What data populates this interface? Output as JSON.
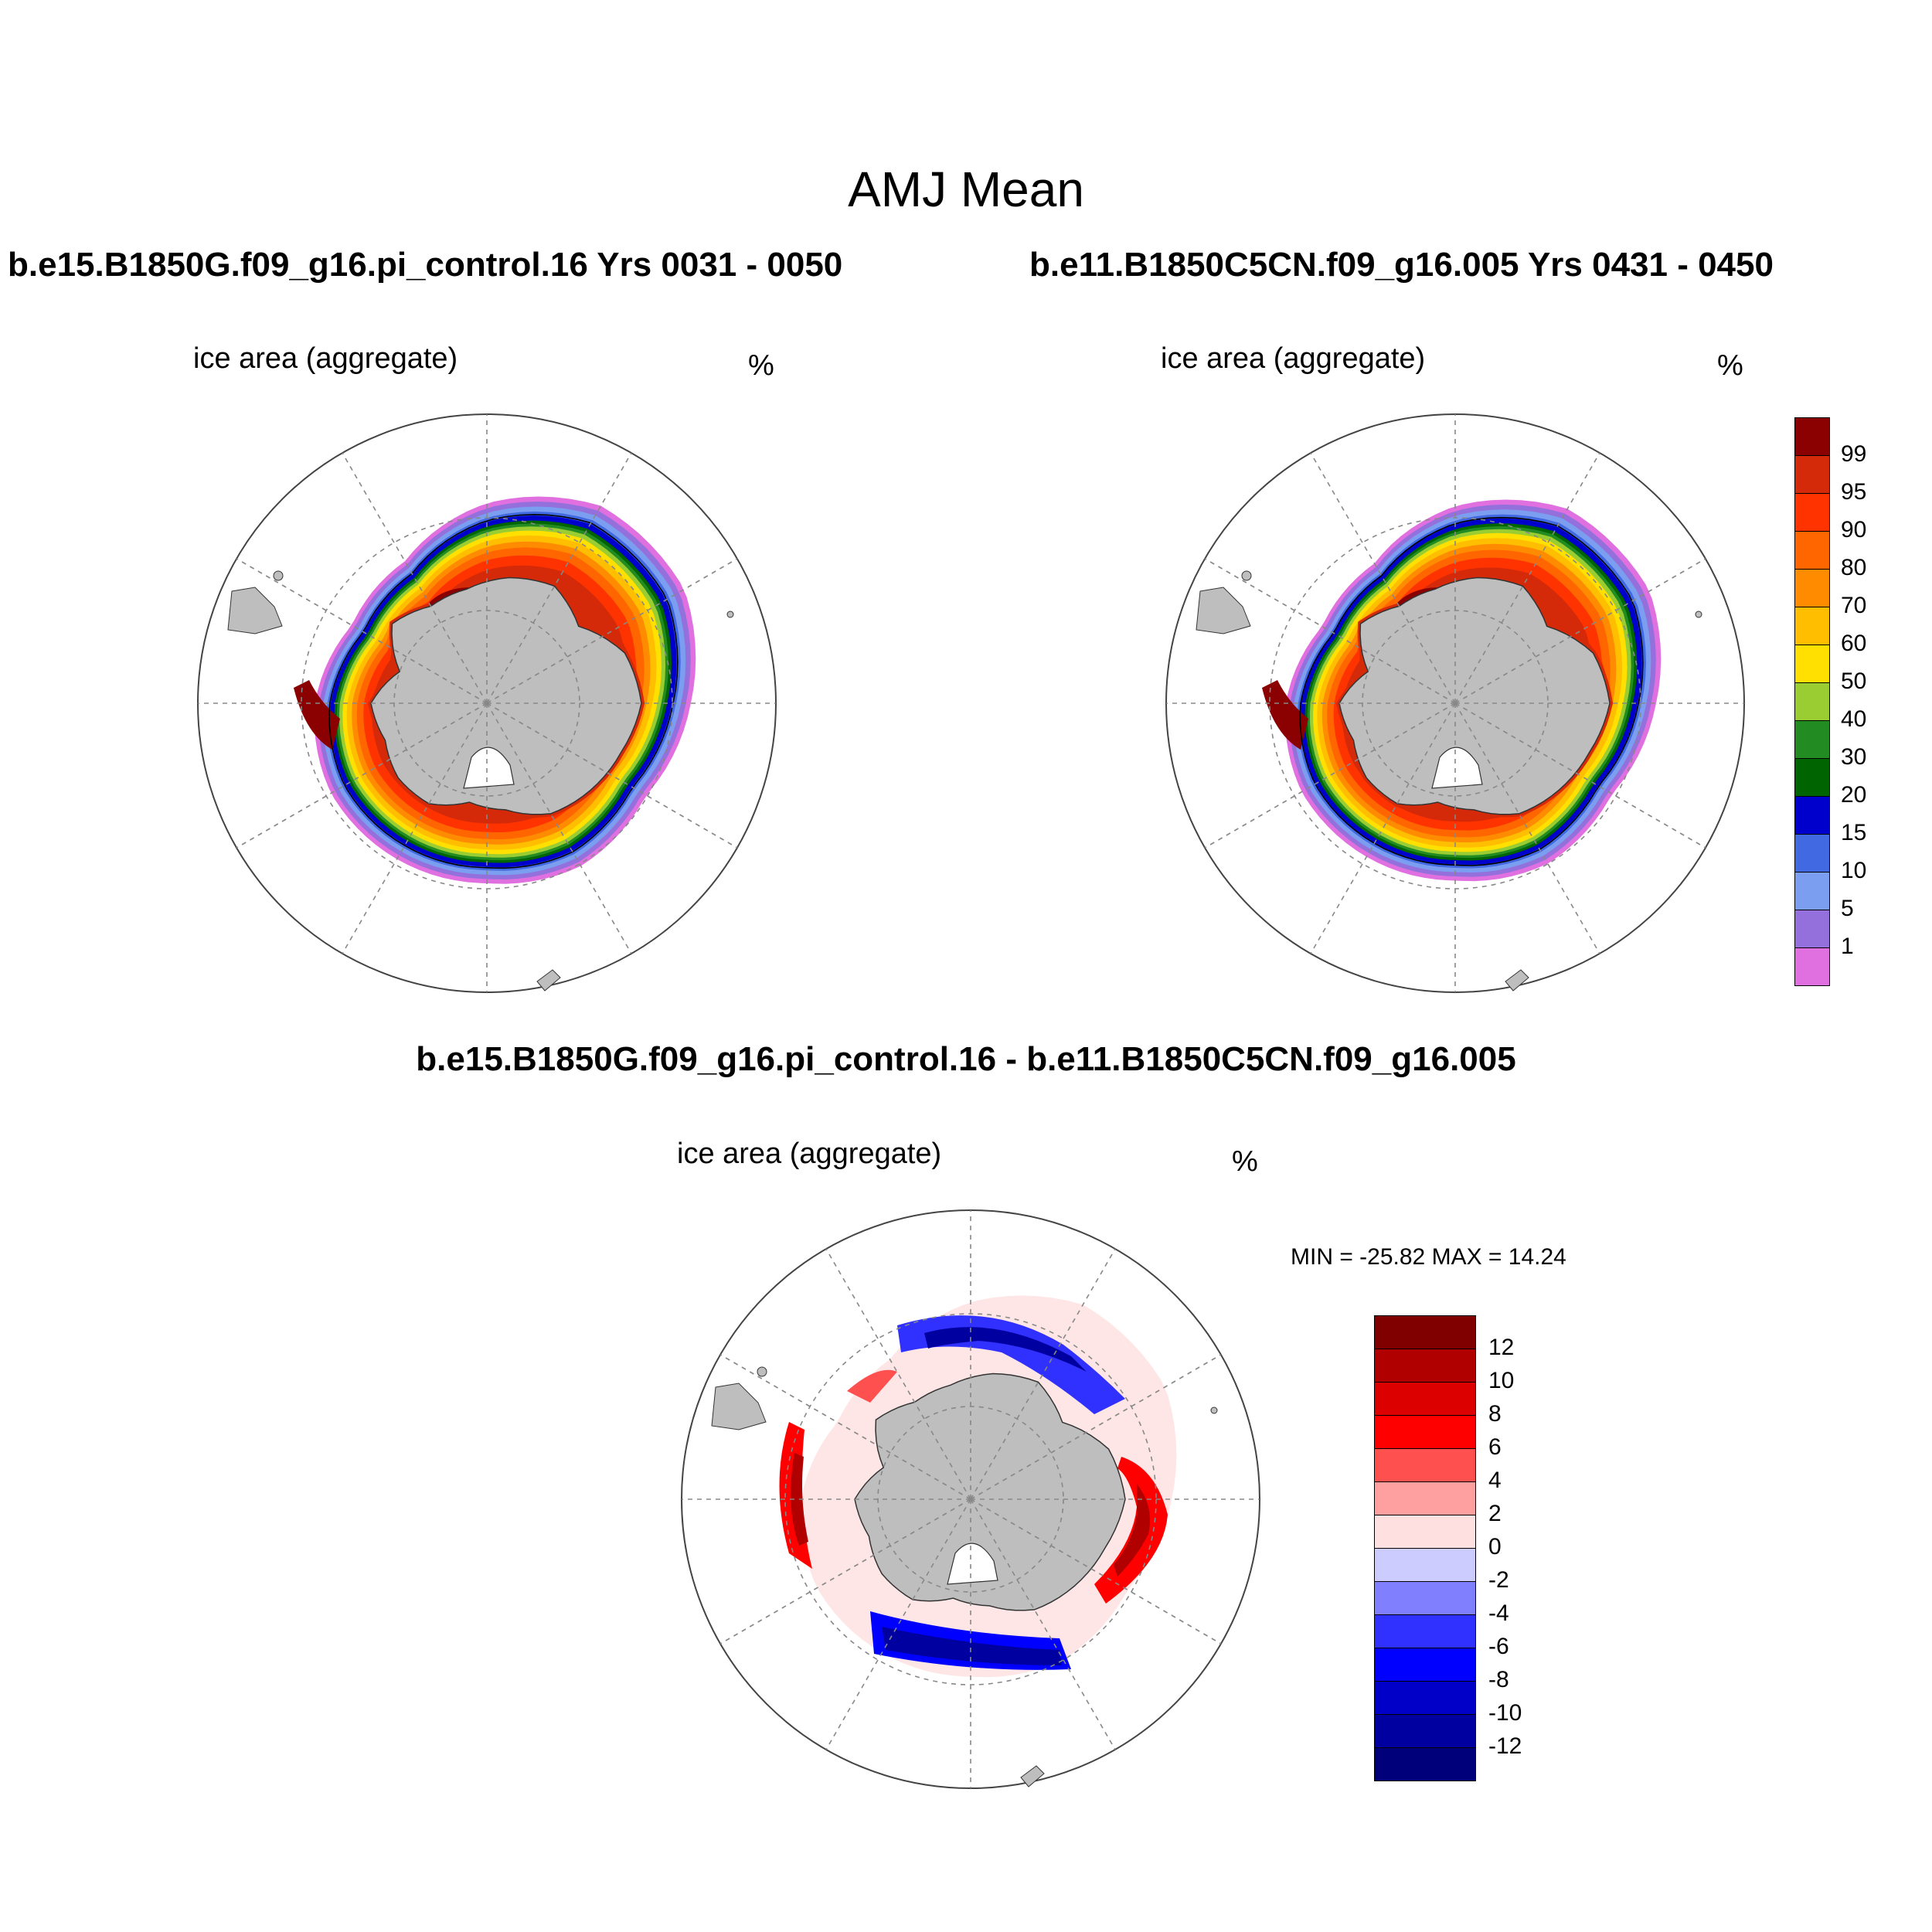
{
  "figure": {
    "title": "AMJ Mean",
    "case1_title": "b.e15.B1850G.f09_g16.pi_control.16  Yrs 0031 - 0050",
    "case2_title": "b.e11.B1850C5CN.f09_g16.005  Yrs 0431 - 0450",
    "diff_title": "b.e15.B1850G.f09_g16.pi_control.16 - b.e11.B1850C5CN.f09_g16.005"
  },
  "panels": [
    {
      "id": "case1",
      "variable": "ice area  (aggregate)",
      "units": "%"
    },
    {
      "id": "case2",
      "variable": "ice area  (aggregate)",
      "units": "%"
    },
    {
      "id": "diff",
      "variable": "ice area  (aggregate)",
      "units": "%",
      "stats": "MIN = -25.82 MAX =  14.24"
    }
  ],
  "colorbar_abs": {
    "labels": [
      "99",
      "95",
      "90",
      "80",
      "70",
      "60",
      "50",
      "40",
      "30",
      "20",
      "15",
      "10",
      "5",
      "1"
    ],
    "colors": [
      "#8b0000",
      "#d42a0a",
      "#ff3300",
      "#ff6600",
      "#ff8c00",
      "#ffbf00",
      "#ffe000",
      "#9acd32",
      "#228b22",
      "#006400",
      "#0000cd",
      "#4169e1",
      "#7b9ef0",
      "#9370db",
      "#e070e0"
    ]
  },
  "colorbar_diff": {
    "labels": [
      "12",
      "10",
      "8",
      "6",
      "4",
      "2",
      "0",
      "-2",
      "-4",
      "-6",
      "-8",
      "-10",
      "-12"
    ],
    "colors": [
      "#800000",
      "#b00000",
      "#dd0000",
      "#ff0000",
      "#ff5050",
      "#ffa0a0",
      "#ffe0e0",
      "#ccccff",
      "#8080ff",
      "#3030ff",
      "#0000ff",
      "#0000c8",
      "#0000a0",
      "#00007a"
    ]
  },
  "map": {
    "projection": "south polar stereographic",
    "land_color": "#bebebe",
    "grid_style": "dashed"
  }
}
